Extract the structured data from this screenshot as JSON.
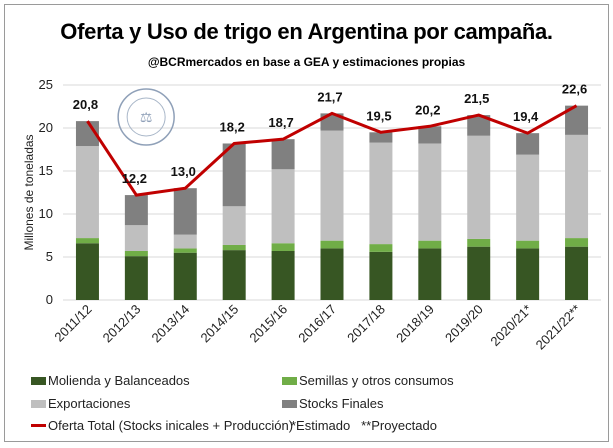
{
  "chart_data": {
    "type": "bar",
    "stacked": true,
    "title": "Oferta y Uso de trigo en Argentina por campaña.",
    "subtitle": "@BCRmercados en base a GEA y estimaciones propias",
    "ylabel": "Millones de toneladas",
    "xlabel": "",
    "ylim": [
      0,
      25
    ],
    "yticks": [
      0,
      5,
      10,
      15,
      20,
      25
    ],
    "grid": true,
    "legend_position": "bottom",
    "categories": [
      "2011/12",
      "2012/13",
      "2013/14",
      "2014/15",
      "2015/16",
      "2016/17",
      "2017/18",
      "2018/19",
      "2019/20",
      "2020/21*",
      "2021/22**"
    ],
    "series": [
      {
        "name": "Molienda y Balanceados",
        "color": "#375623",
        "values": [
          6.6,
          5.1,
          5.5,
          5.8,
          5.7,
          6.0,
          5.6,
          6.0,
          6.2,
          6.0,
          6.2
        ]
      },
      {
        "name": "Semillas y otros consumos",
        "color": "#70ad47",
        "values": [
          0.6,
          0.6,
          0.5,
          0.6,
          0.9,
          0.9,
          0.9,
          0.9,
          0.9,
          0.9,
          1.0
        ]
      },
      {
        "name": "Exportaciones",
        "color": "#bfbfbf",
        "values": [
          10.7,
          3.0,
          1.6,
          4.5,
          8.6,
          12.8,
          11.8,
          11.3,
          12.0,
          10.0,
          12.0
        ]
      },
      {
        "name": "Stocks Finales",
        "color": "#808080",
        "values": [
          2.9,
          3.5,
          5.4,
          7.3,
          3.5,
          2.0,
          1.2,
          2.0,
          2.4,
          2.5,
          3.4
        ]
      }
    ],
    "line": {
      "name": "Oferta Total (Stocks inicales + Producción)",
      "color": "#c00000",
      "values": [
        20.8,
        12.2,
        13.0,
        18.2,
        18.7,
        21.7,
        19.5,
        20.2,
        21.5,
        19.4,
        22.6
      ],
      "labels": [
        "20,8",
        "12,2",
        "13,0",
        "18,2",
        "18,7",
        "21,7",
        "19,5",
        "20,2",
        "21,5",
        "19,4",
        "22,6"
      ]
    },
    "note": "*Estimado   **Proyectado"
  },
  "logo_text": "BOLSA DE COMERCIO DE ROSARIO"
}
